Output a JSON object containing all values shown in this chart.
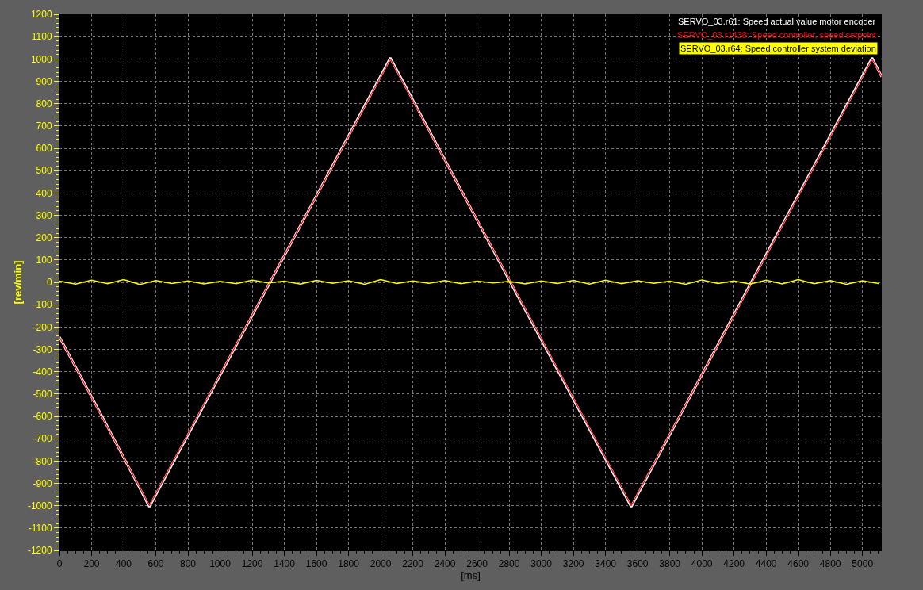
{
  "chart_data": {
    "type": "line",
    "xlabel": "[ms]",
    "ylabel": "[rev/min]",
    "xlim": [
      0,
      5120
    ],
    "xticks": [
      0,
      200,
      400,
      600,
      800,
      1000,
      1200,
      1400,
      1600,
      1800,
      2000,
      2200,
      2400,
      2600,
      2800,
      3000,
      3200,
      3400,
      3600,
      3800,
      4000,
      4200,
      4400,
      4600,
      4800,
      5000
    ],
    "ylim": [
      -1200,
      1200
    ],
    "yticks": [
      -1200,
      -1100,
      -1000,
      -900,
      -800,
      -700,
      -600,
      -500,
      -400,
      -300,
      -200,
      -100,
      0,
      100,
      200,
      300,
      400,
      500,
      600,
      700,
      800,
      900,
      1000,
      1100,
      1200
    ],
    "grid": true,
    "legend": "top right",
    "line_style": "solid",
    "marker": "none",
    "series": [
      {
        "name": "SERVO_03.r61: Speed actual value motor encoder",
        "color": "#ffffff",
        "x": [
          0,
          280,
          560,
          1300,
          2060,
          2800,
          3560,
          4300,
          5060,
          5120
        ],
        "values": [
          -245,
          -620,
          -1005,
          -15,
          1005,
          10,
          -1005,
          -10,
          1005,
          920
        ]
      },
      {
        "name": "SERVO_03.r1438: Speed controller, speed setpoint",
        "color": "#ff0000",
        "x": [
          0,
          560,
          2060,
          3560,
          5060,
          5120
        ],
        "values": [
          -245,
          -1000,
          1000,
          -1000,
          1000,
          920
        ]
      },
      {
        "name": "SERVO_03.r64: Speed controller system deviation",
        "color": "#ffff00",
        "x": [
          0,
          100,
          200,
          300,
          400,
          500,
          600,
          700,
          800,
          900,
          1000,
          1100,
          1200,
          1300,
          1400,
          1500,
          1600,
          1700,
          1800,
          1900,
          2000,
          2100,
          2200,
          2300,
          2400,
          2500,
          2600,
          2700,
          2800,
          2900,
          3000,
          3100,
          3200,
          3300,
          3400,
          3500,
          3600,
          3700,
          3800,
          3900,
          4000,
          4100,
          4200,
          4300,
          4400,
          4500,
          4600,
          4700,
          4800,
          4900,
          5000,
          5100
        ],
        "values": [
          5,
          -8,
          10,
          -6,
          12,
          -10,
          8,
          -5,
          6,
          -7,
          4,
          -6,
          10,
          -3,
          5,
          -8,
          9,
          -4,
          7,
          -9,
          12,
          -5,
          6,
          -4,
          8,
          -6,
          5,
          -3,
          4,
          -7,
          6,
          -5,
          9,
          -8,
          10,
          -6,
          7,
          -4,
          5,
          -9,
          11,
          -5,
          6,
          -8,
          10,
          -7,
          12,
          -6,
          8,
          -9,
          7,
          -5
        ]
      }
    ]
  }
}
